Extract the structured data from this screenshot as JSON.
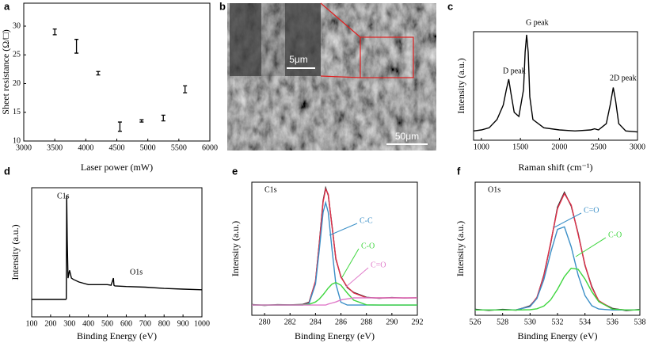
{
  "chart_data": [
    {
      "type": "errorbar",
      "label": "a",
      "xlabel": "Laser power (mW)",
      "ylabel": "Sheet resistance (Ω/□)",
      "x": [
        3500,
        3850,
        4200,
        4550,
        4900,
        5250,
        5600
      ],
      "values": [
        29,
        26.5,
        21.8,
        12.5,
        13.5,
        14,
        19
      ],
      "errors": [
        0.5,
        1.2,
        0.3,
        0.8,
        0.2,
        0.5,
        0.6
      ],
      "xlim": [
        3000,
        6000
      ],
      "xticks": [
        3000,
        3500,
        4000,
        4500,
        5000,
        5500,
        6000
      ],
      "ylim": [
        10,
        34
      ],
      "yticks": [
        10,
        15,
        20,
        25,
        30
      ],
      "color": "#000000"
    },
    {
      "type": "line",
      "label": "c",
      "xlabel": "Raman shift (cm⁻¹)",
      "ylabel": "Intensity (a.u.)",
      "annotations": [
        "D peak",
        "G peak",
        "2D peak"
      ],
      "x": [
        900,
        1000,
        1100,
        1200,
        1280,
        1320,
        1350,
        1380,
        1420,
        1480,
        1540,
        1560,
        1580,
        1600,
        1620,
        1660,
        1800,
        2000,
        2200,
        2400,
        2450,
        2500,
        2600,
        2650,
        2690,
        2720,
        2760,
        2850,
        3000
      ],
      "values": [
        9,
        10,
        12,
        20,
        34,
        49,
        59,
        45,
        27,
        23,
        49,
        85,
        102,
        85,
        42,
        20,
        12,
        10,
        9,
        10,
        11,
        10,
        16,
        34,
        51,
        38,
        16,
        9,
        8
      ],
      "xlim": [
        900,
        3000
      ],
      "xticks": [
        1000,
        1500,
        2000,
        2500,
        3000
      ],
      "ylim": [
        0,
        105
      ],
      "color": "#000000"
    },
    {
      "type": "line",
      "label": "d",
      "xlabel": "Binding Energy (eV)",
      "ylabel": "Intensity (a.u.)",
      "annotations": [
        "C1s",
        "O1s"
      ],
      "x": [
        100,
        280,
        283,
        285,
        288,
        292,
        300,
        310,
        320,
        350,
        400,
        500,
        520,
        532,
        535,
        540,
        600,
        700,
        800,
        900,
        1000
      ],
      "values": [
        13.5,
        13.5,
        14,
        94,
        60,
        30,
        36,
        30,
        29,
        27,
        25,
        25,
        24.5,
        30,
        24.5,
        24,
        23.5,
        23,
        22,
        21.5,
        21
      ],
      "xlim": [
        100,
        1000
      ],
      "xticks": [
        100,
        200,
        300,
        400,
        500,
        600,
        700,
        800,
        900,
        1000
      ],
      "ylim": [
        0,
        100
      ],
      "color": "#000000"
    },
    {
      "type": "line",
      "label": "e",
      "xlabel": "Binding Energy (eV)",
      "ylabel": "Intensity (a.u.)",
      "annotations": [
        "C1s"
      ],
      "x": [
        279,
        280,
        281,
        282,
        283,
        283.5,
        284,
        284.3,
        284.6,
        284.8,
        285,
        285.3,
        285.6,
        286,
        286.5,
        287,
        288,
        289,
        290,
        291,
        292
      ],
      "series": [
        {
          "color": "#222222",
          "values": [
            0.5,
            -0.3,
            0.4,
            0.2,
            0.6,
            2.8,
            22.9,
            60.5,
            101.8,
            114.5,
            107.3,
            77.2,
            44.9,
            27.8,
            17.1,
            12.3,
            7.6,
            6.6,
            7.3,
            6.8,
            7.2
          ]
        },
        {
          "color": "#e0304a",
          "values": [
            0,
            0,
            0,
            0,
            0.1,
            2.2,
            23.6,
            59.9,
            100.7,
            113.3,
            108.2,
            76.5,
            45.6,
            27.2,
            17.7,
            11.8,
            7.2,
            7,
            7,
            7,
            7
          ]
        },
        {
          "name": "C-C",
          "color": "#3b8fc7",
          "values": [
            0,
            0,
            0,
            0,
            0,
            1.5,
            20.6,
            54,
            90.6,
            100,
            90.6,
            54,
            20.6,
            2.8,
            0,
            0,
            0,
            0,
            0,
            0,
            0
          ]
        },
        {
          "name": "C-O",
          "color": "#3fd63f",
          "values": [
            0,
            0,
            0,
            0,
            0.1,
            0.7,
            3,
            5.9,
            10.1,
            13.3,
            16.6,
            20.5,
            22,
            19.4,
            11.7,
            4.8,
            0.2,
            0,
            0,
            0,
            0
          ]
        },
        {
          "name": "C=O",
          "color": "#e07ac9",
          "values": [
            0,
            0,
            0,
            0,
            0,
            0,
            0,
            0,
            0,
            0,
            1,
            2,
            3,
            5,
            6,
            7,
            7,
            7,
            7,
            7,
            7
          ]
        }
      ],
      "xlim": [
        279,
        292
      ],
      "xticks": [
        280,
        282,
        284,
        286,
        288,
        290,
        292
      ],
      "ylim": [
        -10,
        120
      ]
    },
    {
      "type": "line",
      "label": "f",
      "xlabel": "Binding Energy (eV)",
      "ylabel": "Intensity (a.u.)",
      "annotations": [
        "O1s"
      ],
      "x": [
        526,
        527,
        528,
        529,
        530,
        530.5,
        531,
        531.5,
        532,
        532.5,
        533,
        533.5,
        534,
        534.5,
        535,
        536,
        537,
        538
      ],
      "series": [
        {
          "color": "#222222",
          "values": [
            0.6,
            -0.4,
            0.5,
            -0.2,
            3.9,
            11.2,
            32.6,
            62.1,
            96.5,
            110.4,
            97.6,
            72.0,
            41.8,
            22.0,
            8.1,
            1.5,
            -0.5,
            0.4
          ]
        },
        {
          "color": "#e0304a",
          "values": [
            0,
            0,
            0,
            0.1,
            3.3,
            11.9,
            31.9,
            63,
            95.2,
            109.3,
            98.5,
            71.1,
            42.5,
            21.2,
            8.8,
            0.8,
            0,
            0
          ]
        },
        {
          "name": "C=O",
          "color": "#3b8fc7",
          "values": [
            0,
            0,
            0,
            0.1,
            3.1,
            10.8,
            28.3,
            53.6,
            75.7,
            78,
            59.3,
            32.9,
            13.5,
            4,
            0.9,
            0,
            0,
            0
          ]
        },
        {
          "name": "C-O",
          "color": "#3fd63f",
          "values": [
            0,
            0,
            0,
            0,
            0.2,
            1.1,
            3.6,
            9.4,
            19.5,
            31.3,
            39.2,
            38.2,
            29,
            17.2,
            7.9,
            0.8,
            0,
            0
          ]
        }
      ],
      "xlim": [
        526,
        538
      ],
      "xticks": [
        526,
        528,
        530,
        532,
        534,
        536,
        538
      ],
      "ylim": [
        -5,
        120
      ]
    }
  ],
  "image_panel": {
    "label": "b",
    "scale_bars": [
      "5μm",
      "50μm"
    ]
  }
}
